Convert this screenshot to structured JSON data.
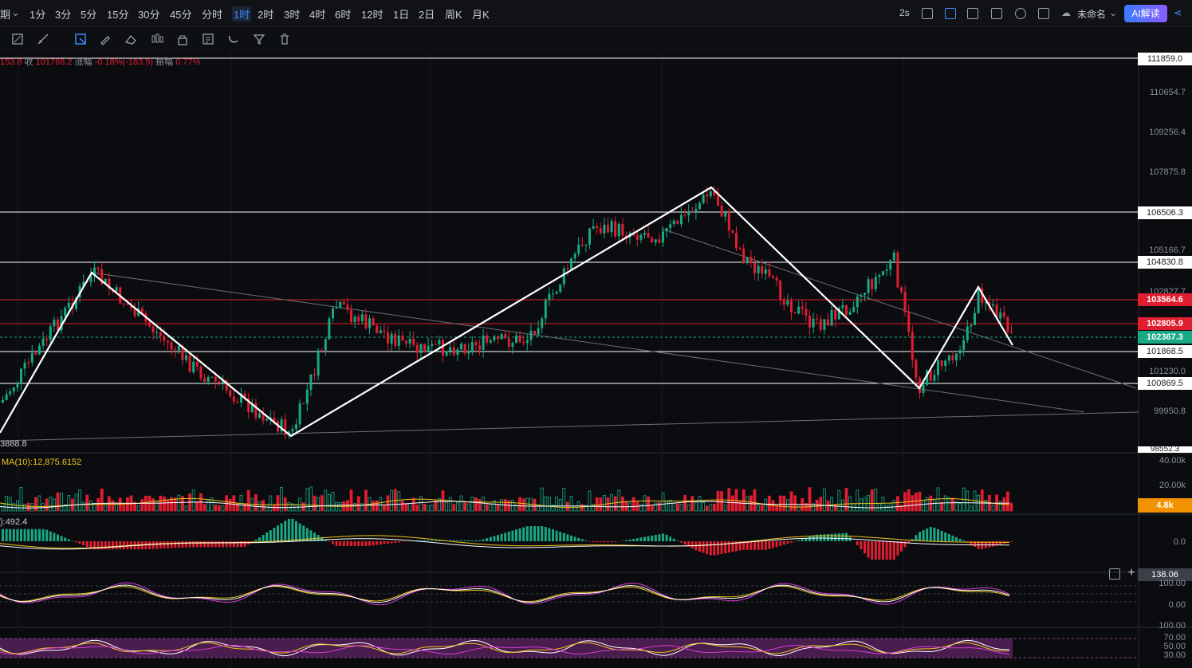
{
  "timeframes": {
    "period_label": "期",
    "items": [
      "1分",
      "3分",
      "5分",
      "15分",
      "30分",
      "45分",
      "分时",
      "1时",
      "2时",
      "3时",
      "4时",
      "6时",
      "12时",
      "1日",
      "2日",
      "周K",
      "月K"
    ],
    "active": "1时"
  },
  "topright": {
    "interval": "2s",
    "layout_name": "未命名",
    "ai_label": "AI解读"
  },
  "ohlc_line": {
    "prefix": "153",
    "prefix_value": ".8",
    "close_label": "收",
    "close_value": "101768.2",
    "change_label": "涨幅",
    "change_value": "-0.18%(-183.9)",
    "amp_label": "振幅",
    "amp_value": "0.77%"
  },
  "price_axis": {
    "ticks": [
      "110654.7",
      "109256.4",
      "107875.8",
      "105166.7",
      "102827.7",
      "101230.0",
      "99950.8"
    ],
    "tag_top": "111859.0",
    "tag_bottom": "98552.3",
    "low_marker": "3888.8"
  },
  "price_tags": [
    {
      "value": "111859.0",
      "color": "white"
    },
    {
      "value": "106506.3",
      "color": "white"
    },
    {
      "value": "104830.8",
      "color": "white"
    },
    {
      "value": "103564.6",
      "color": "red"
    },
    {
      "value": "102805.9",
      "color": "red"
    },
    {
      "value": "102367.3",
      "color": "green"
    },
    {
      "value": "101868.5",
      "color": "white"
    },
    {
      "value": "100869.5",
      "color": "white"
    }
  ],
  "volume": {
    "label": "MA(10):12,875.6152",
    "ticks": [
      "40.00k",
      "20.00k"
    ],
    "current": "4.8k"
  },
  "macd": {
    "label": "):492.4",
    "zero": "0.0"
  },
  "kdj": {
    "ticks": [
      "100.00",
      "0.00"
    ],
    "current": "138.06"
  },
  "rsi": {
    "ticks": [
      "100.00",
      "70.00",
      "50.00",
      "30.00"
    ]
  },
  "colors": {
    "up": "#19a985",
    "down": "#e11d30",
    "accent": "#3d8bff",
    "ma_yellow": "#f0c419",
    "pink": "#d63cd6"
  }
}
